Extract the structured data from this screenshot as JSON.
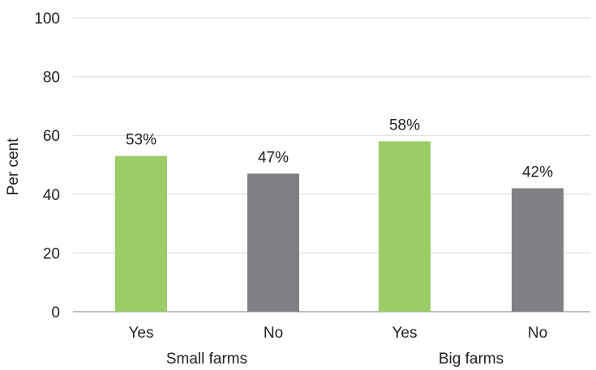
{
  "chart_data": {
    "type": "bar",
    "ylabel": "Per cent",
    "ylim": [
      0,
      100
    ],
    "yticks": [
      0,
      20,
      40,
      60,
      80,
      100
    ],
    "grid": true,
    "legend": "none",
    "groups": [
      {
        "label": "Small farms",
        "bars": [
          {
            "category": "Yes",
            "value": 53,
            "label": "53%"
          },
          {
            "category": "No",
            "value": 47,
            "label": "47%"
          }
        ]
      },
      {
        "label": "Big farms",
        "bars": [
          {
            "category": "Yes",
            "value": 58,
            "label": "58%"
          },
          {
            "category": "No",
            "value": 42,
            "label": "42%"
          }
        ]
      }
    ],
    "colors": {
      "Yes": "#9ccc65",
      "No": "#808084",
      "grid": "#d9d9d9",
      "axis": "#bfbfbf"
    }
  }
}
